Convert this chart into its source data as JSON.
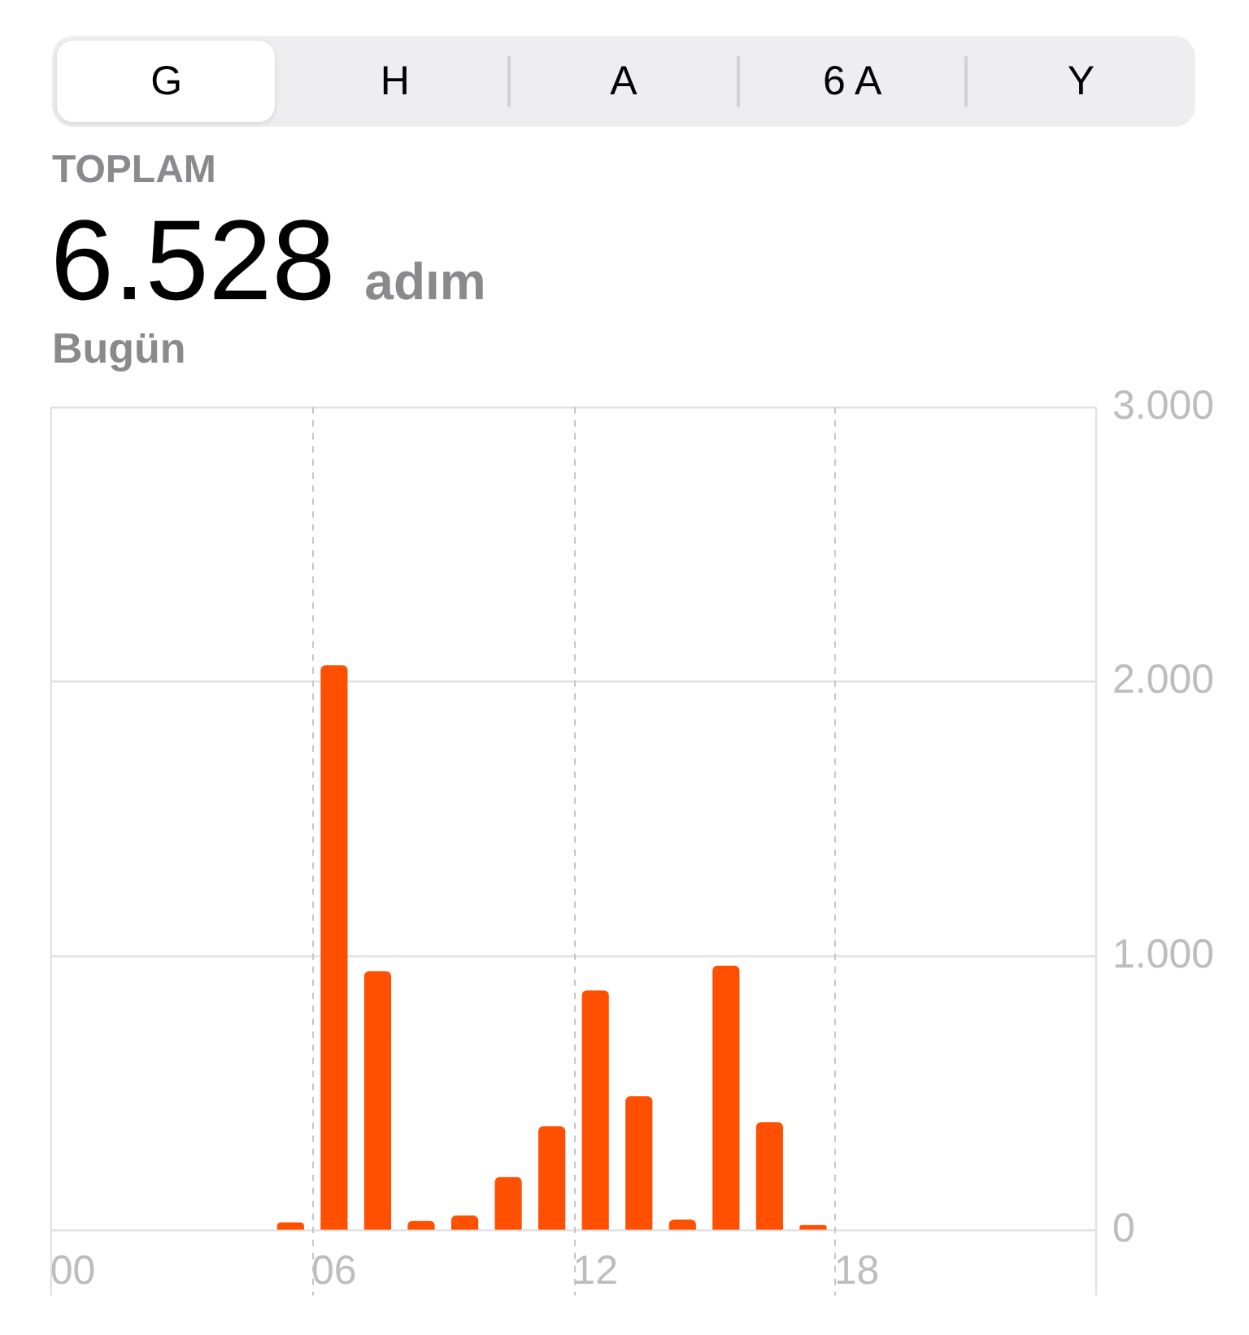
{
  "chart_data": {
    "type": "bar",
    "title": "TOPLAM",
    "subtitle": "Bugün",
    "annotations": [
      "6.528",
      "adım",
      "G",
      "H",
      "A",
      "6 A",
      "Y"
    ],
    "categories": [
      "00",
      null,
      null,
      null,
      null,
      null,
      "06",
      null,
      null,
      null,
      null,
      null,
      "12",
      null,
      null,
      null,
      null,
      null,
      "18",
      null,
      null,
      null,
      null,
      null
    ],
    "values": [
      null,
      null,
      null,
      null,
      null,
      30,
      2060,
      945,
      35,
      55,
      195,
      380,
      875,
      490,
      40,
      965,
      395,
      20,
      null,
      null,
      null,
      null,
      null,
      null
    ],
    "color": "#ff4f00",
    "ylim": [
      0,
      3000
    ],
    "yticks": [
      0,
      {
        "value": 1000,
        "label": "1.000"
      },
      {
        "value": 2000,
        "label": "2.000"
      },
      {
        "value": 3000,
        "label": "3.000"
      }
    ],
    "grid": true
  }
}
